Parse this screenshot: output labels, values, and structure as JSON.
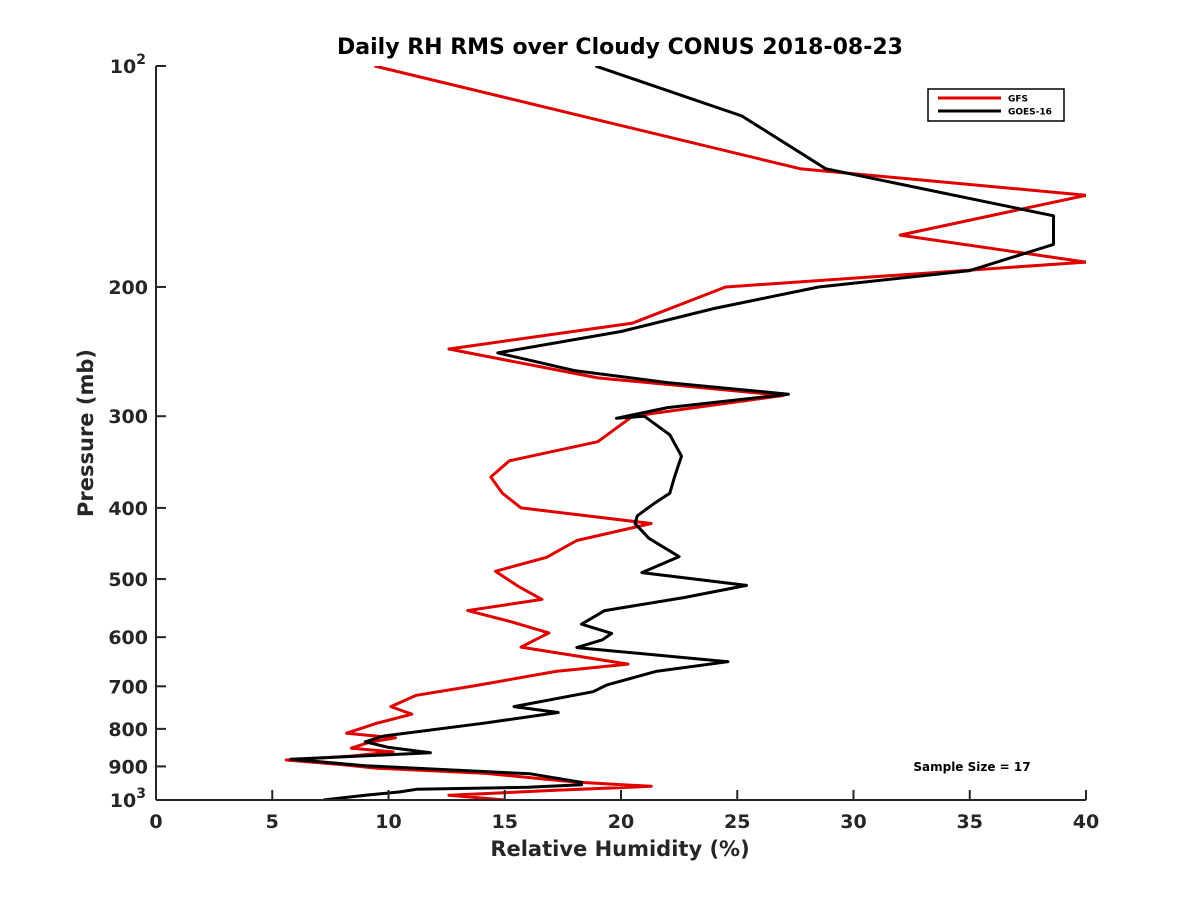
{
  "chart_data": {
    "type": "line",
    "title": "Daily RH RMS over Cloudy CONUS 2018-08-23",
    "xlabel": "Relative Humidity (%)",
    "ylabel": "Pressure (mb)",
    "xlim": [
      0,
      40
    ],
    "ylim": [
      100,
      1000
    ],
    "y_scale": "log",
    "y_reversed": true,
    "grid": false,
    "legend_position": "top-right",
    "x_ticks": [
      0,
      5,
      10,
      15,
      20,
      25,
      30,
      35,
      40
    ],
    "y_ticks": [
      {
        "value": 100,
        "base": "10",
        "exp": "2",
        "text": ""
      },
      {
        "value": 200,
        "text": "200"
      },
      {
        "value": 300,
        "text": "300"
      },
      {
        "value": 400,
        "text": "400"
      },
      {
        "value": 500,
        "text": "500"
      },
      {
        "value": 600,
        "text": "600"
      },
      {
        "value": 700,
        "text": "700"
      },
      {
        "value": 800,
        "text": "800"
      },
      {
        "value": 900,
        "text": "900"
      },
      {
        "value": 1000,
        "base": "10",
        "exp": "3",
        "text": ""
      }
    ],
    "series": [
      {
        "name": "GFS",
        "color": "#e00000",
        "points": [
          [
            9.4,
            100
          ],
          [
            27.7,
            138
          ],
          [
            40,
            150
          ],
          [
            32,
            170
          ],
          [
            40,
            185
          ],
          [
            24.5,
            200
          ],
          [
            20.5,
            224
          ],
          [
            12.6,
            243
          ],
          [
            19.0,
            266
          ],
          [
            27.0,
            281
          ],
          [
            20.5,
            300
          ],
          [
            19.0,
            325
          ],
          [
            15.2,
            345
          ],
          [
            14.4,
            363
          ],
          [
            14.9,
            382
          ],
          [
            15.7,
            400
          ],
          [
            21.3,
            420
          ],
          [
            18.1,
            443
          ],
          [
            16.8,
            467
          ],
          [
            14.6,
            488
          ],
          [
            15.6,
            512
          ],
          [
            16.6,
            533
          ],
          [
            13.4,
            552
          ],
          [
            15.3,
            572
          ],
          [
            16.9,
            592
          ],
          [
            15.7,
            619
          ],
          [
            20.3,
            653
          ],
          [
            17.2,
            668
          ],
          [
            13.8,
            698
          ],
          [
            11.2,
            720
          ],
          [
            10.1,
            746
          ],
          [
            11.0,
            764
          ],
          [
            9.5,
            786
          ],
          [
            8.2,
            811
          ],
          [
            10.3,
            823
          ],
          [
            9.2,
            834
          ],
          [
            8.4,
            850
          ],
          [
            10.2,
            860
          ],
          [
            8.3,
            872
          ],
          [
            5.6,
            882
          ],
          [
            8.0,
            895
          ],
          [
            9.5,
            905
          ],
          [
            14.2,
            920
          ],
          [
            18.0,
            945
          ],
          [
            21.3,
            958
          ],
          [
            17.2,
            970
          ],
          [
            12.6,
            985
          ],
          [
            15.0,
            1000
          ]
        ]
      },
      {
        "name": "GOES-16",
        "color": "#000000",
        "points": [
          [
            18.9,
            100
          ],
          [
            25.2,
            117
          ],
          [
            28.8,
            138
          ],
          [
            38.6,
            160
          ],
          [
            38.6,
            175
          ],
          [
            35.0,
            190
          ],
          [
            28.5,
            200
          ],
          [
            24.0,
            214
          ],
          [
            20.0,
            230
          ],
          [
            14.7,
            246
          ],
          [
            18.0,
            260
          ],
          [
            22.0,
            270
          ],
          [
            27.2,
            280
          ],
          [
            22.0,
            292
          ],
          [
            19.8,
            302
          ],
          [
            21.0,
            300
          ],
          [
            22.1,
            318
          ],
          [
            22.6,
            340
          ],
          [
            22.3,
            363
          ],
          [
            22.1,
            382
          ],
          [
            21.4,
            395
          ],
          [
            20.7,
            410
          ],
          [
            20.6,
            420
          ],
          [
            21.2,
            440
          ],
          [
            22.5,
            466
          ],
          [
            20.9,
            490
          ],
          [
            25.4,
            510
          ],
          [
            22.7,
            530
          ],
          [
            19.3,
            552
          ],
          [
            18.3,
            576
          ],
          [
            19.6,
            593
          ],
          [
            19.2,
            605
          ],
          [
            18.1,
            620
          ],
          [
            24.6,
            648
          ],
          [
            21.5,
            668
          ],
          [
            19.9,
            690
          ],
          [
            19.4,
            697
          ],
          [
            18.8,
            712
          ],
          [
            15.4,
            746
          ],
          [
            17.3,
            760
          ],
          [
            14.1,
            786
          ],
          [
            9.8,
            818
          ],
          [
            9.0,
            833
          ],
          [
            10.0,
            848
          ],
          [
            11.8,
            862
          ],
          [
            8.6,
            872
          ],
          [
            5.8,
            880
          ],
          [
            9.0,
            898
          ],
          [
            16.1,
            921
          ],
          [
            18.3,
            946
          ],
          [
            18.3,
            953
          ],
          [
            16.0,
            961
          ],
          [
            11.2,
            967
          ],
          [
            10.5,
            975
          ],
          [
            9.0,
            985
          ],
          [
            7.2,
            1000
          ]
        ]
      }
    ],
    "annotation": "Sample Size = 17"
  }
}
